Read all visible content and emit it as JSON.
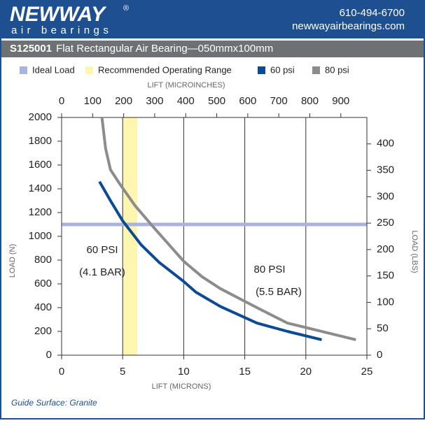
{
  "header": {
    "logo": "NEWWAY",
    "registered": "®",
    "tagline": "air bearings",
    "phone": "610-494-6700",
    "website": "newwayairbearings.com"
  },
  "chart_data": {
    "type": "line",
    "title_code": "S125001",
    "title": "Flat Rectangular Air Bearing—050mmx100mm",
    "x_label": "LIFT (MICRONS)",
    "x2_label": "LIFT (MICROINCHES)",
    "y_label": "LOAD (N)",
    "y2_label": "LOAD (LBS)",
    "xlim": [
      0,
      25
    ],
    "xticks": [
      0,
      5,
      10,
      15,
      20,
      25
    ],
    "x2lim": [
      0,
      984
    ],
    "x2ticks": [
      0,
      100,
      200,
      300,
      400,
      500,
      600,
      700,
      800,
      900
    ],
    "ylim": [
      0,
      2000
    ],
    "yticks": [
      0,
      200,
      400,
      600,
      800,
      1000,
      1200,
      1400,
      1600,
      1800,
      2000
    ],
    "y2lim": [
      0,
      450
    ],
    "y2ticks": [
      0,
      50,
      100,
      150,
      200,
      250,
      300,
      350,
      400
    ],
    "grid": "x",
    "reference_line": {
      "name": "Ideal Load",
      "value": 1100,
      "color": "#a9b3dd"
    },
    "band": {
      "name": "Recommended Operating Range",
      "x": [
        5,
        6.2
      ],
      "color": "#fcf6b1"
    },
    "series": [
      {
        "name": "60 psi",
        "color": "#0b4a95",
        "x": [
          3.1,
          4,
          5,
          6.5,
          8,
          10,
          11,
          13,
          16,
          18.5,
          21.3
        ],
        "values": [
          1460,
          1300,
          1130,
          930,
          780,
          620,
          530,
          410,
          270,
          200,
          130
        ]
      },
      {
        "name": "80 psi",
        "color": "#8c8c8c",
        "x": [
          3.3,
          3.6,
          4,
          4.7,
          6,
          7.5,
          10,
          11.5,
          13,
          16,
          18.5,
          24.1
        ],
        "values": [
          2000,
          1740,
          1560,
          1450,
          1260,
          1080,
          790,
          660,
          560,
          400,
          270,
          130
        ]
      }
    ],
    "annotations": [
      "60 PSI",
      "(4.1 BAR)",
      "80 PSI",
      "(5.5 BAR)"
    ],
    "footnote": "Guide Surface: Granite"
  }
}
